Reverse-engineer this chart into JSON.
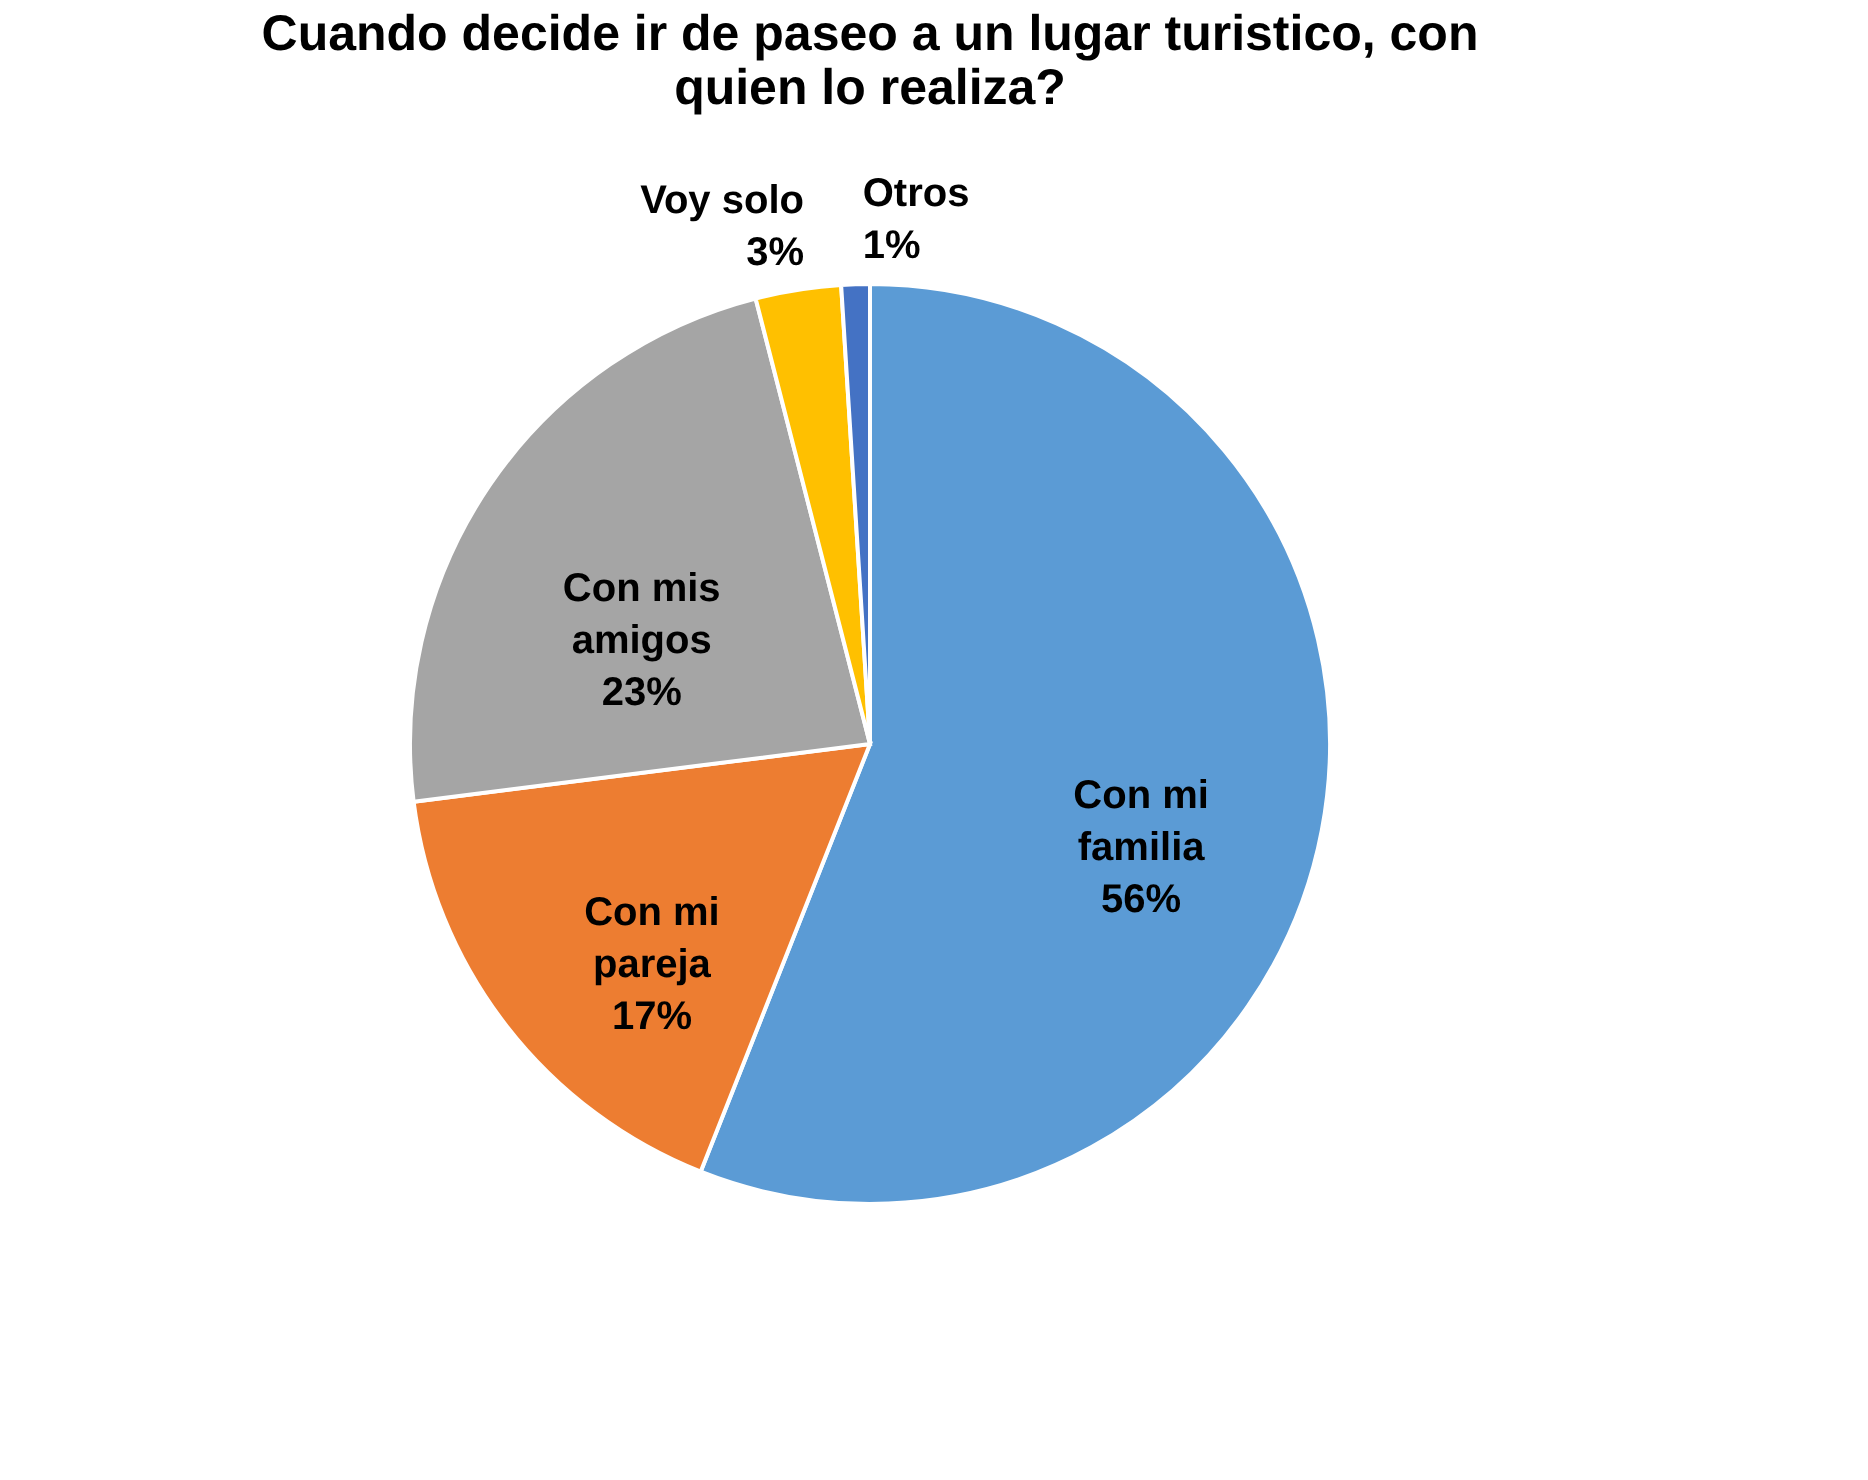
{
  "chart_data": {
    "type": "pie",
    "title": "Cuando decide ir de paseo a un lugar turistico, con quien lo realiza?",
    "categories": [
      "Con mi familia",
      "Con mi pareja",
      "Con mis amigos",
      "Voy solo",
      "Otros"
    ],
    "values": [
      56,
      17,
      23,
      3,
      1
    ],
    "value_labels": [
      "56%",
      "17%",
      "23%",
      "3%",
      "1%"
    ],
    "colors": [
      "#5b9bd5",
      "#ed7d31",
      "#a5a5a5",
      "#ffc000",
      "#4472c4"
    ],
    "legend": false
  }
}
